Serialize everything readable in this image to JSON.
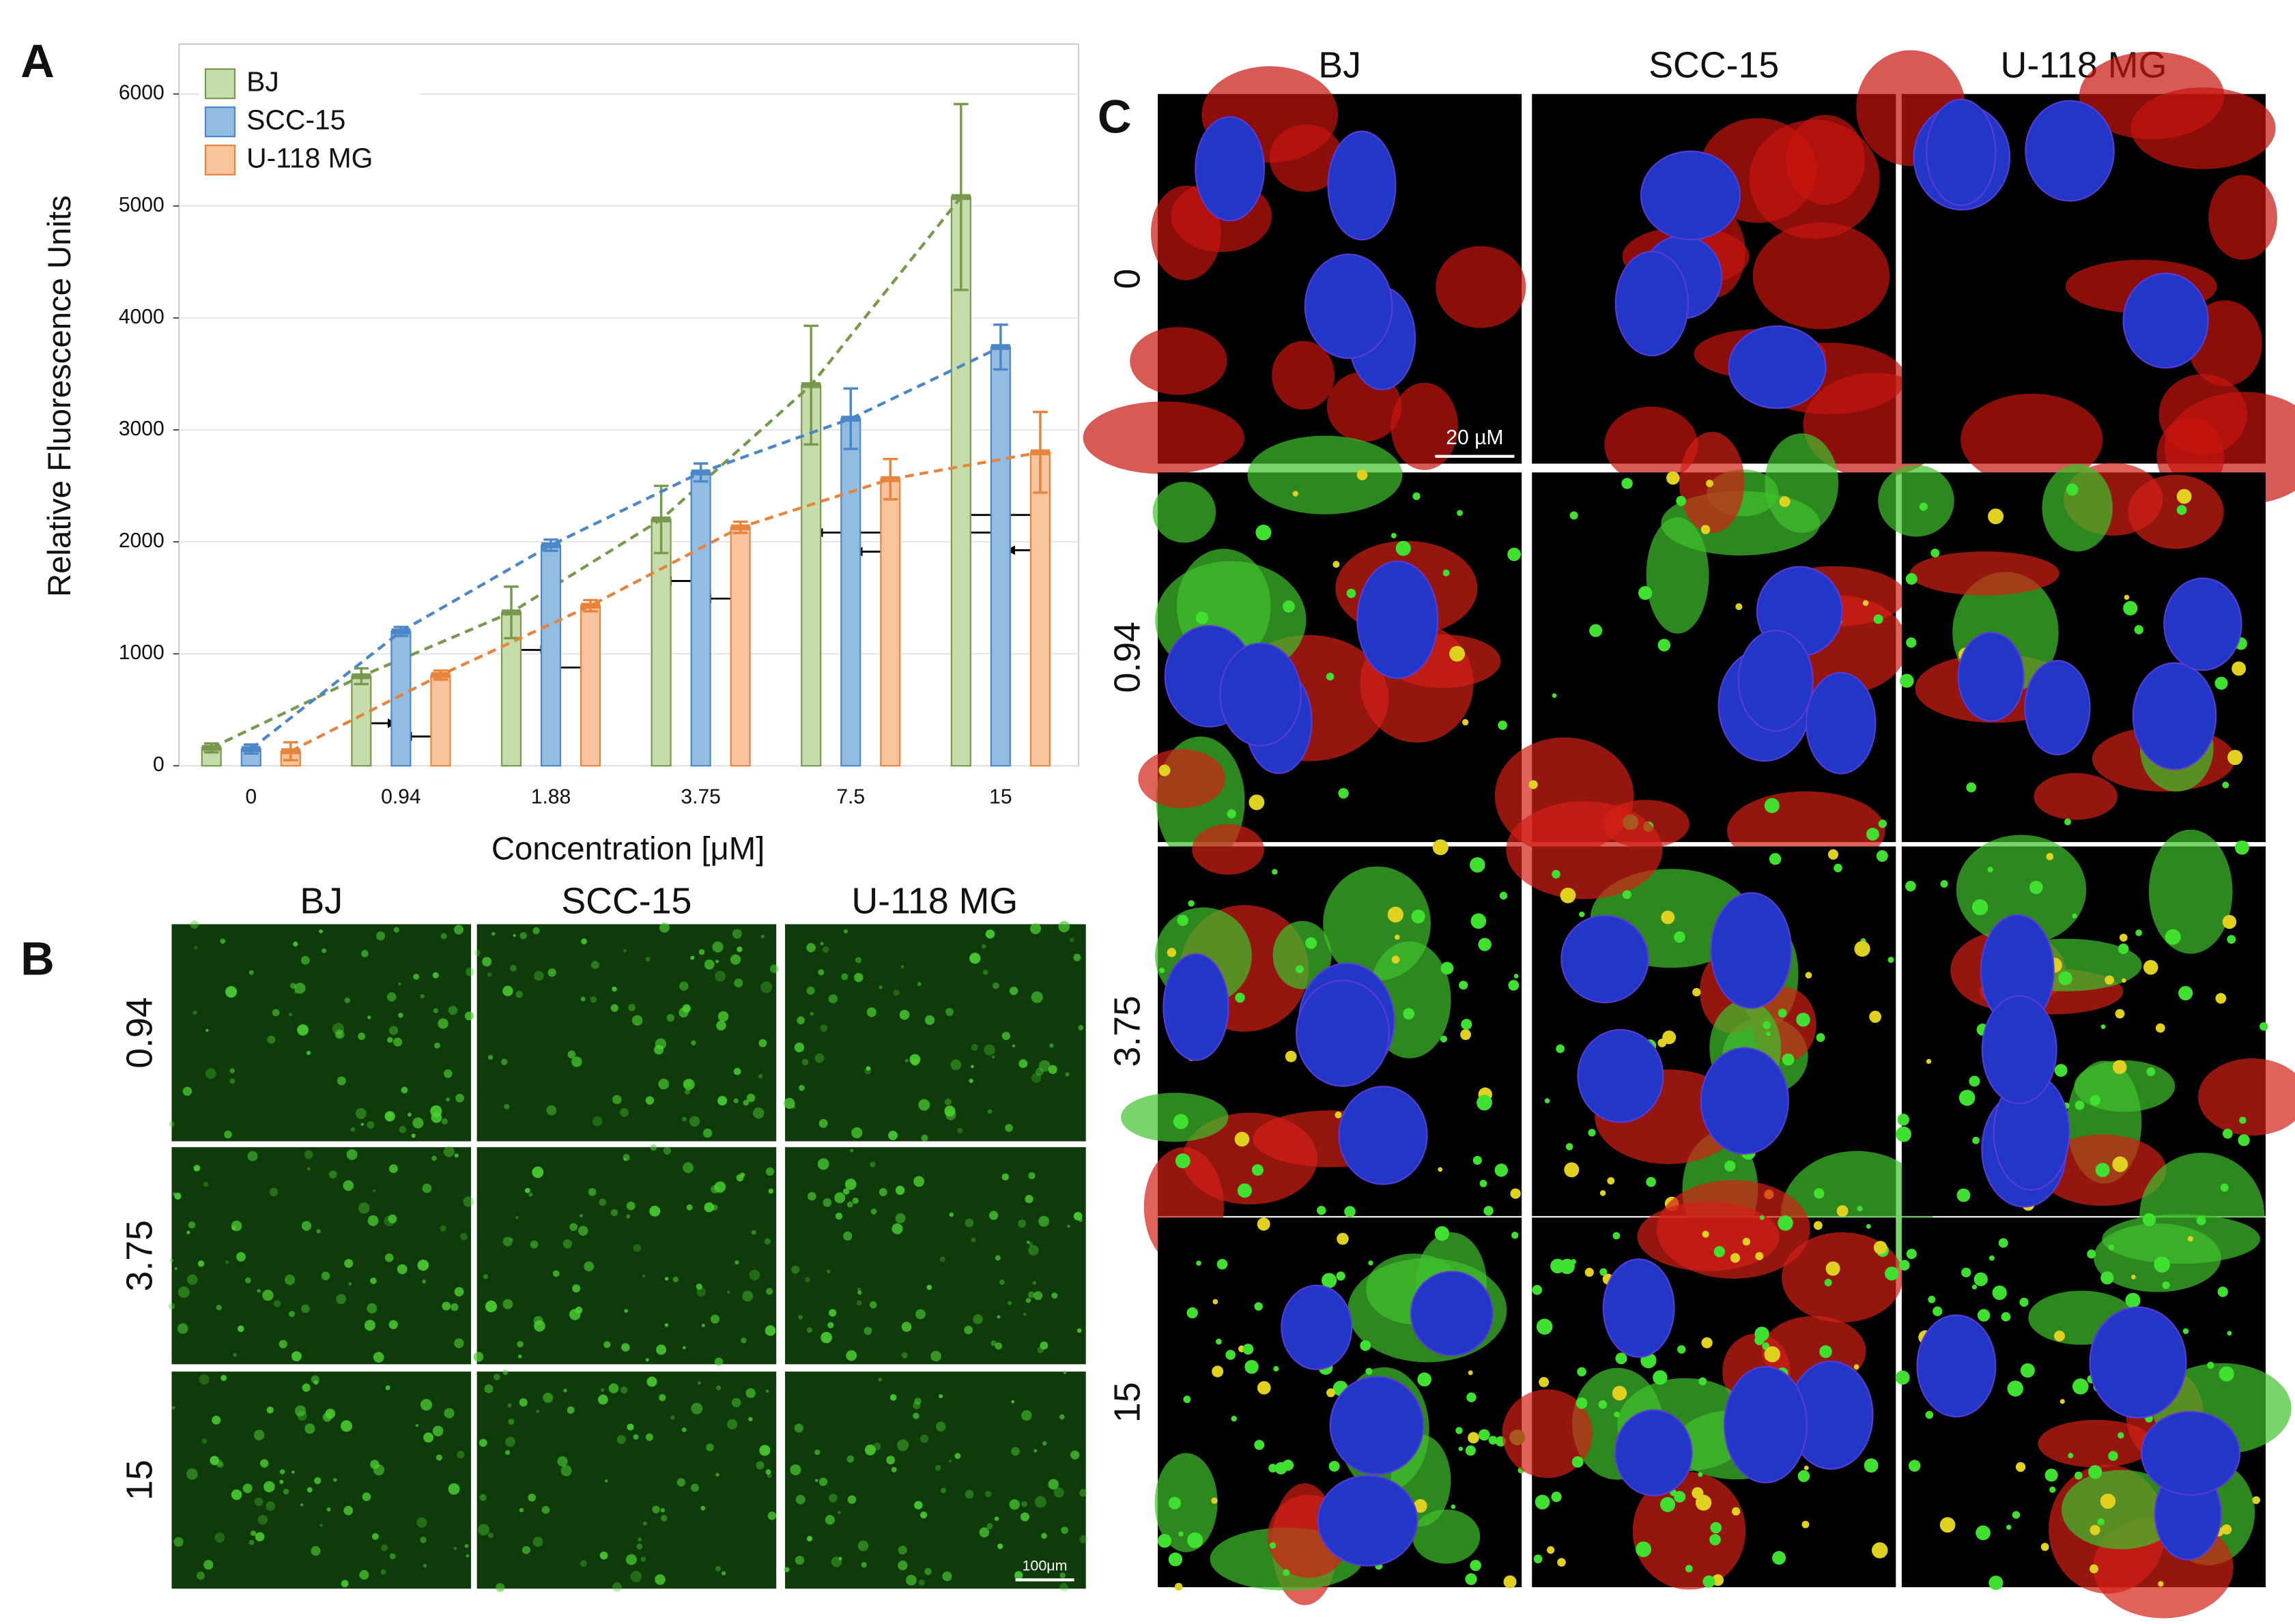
{
  "panels": [
    "A",
    "B",
    "C"
  ],
  "chart_data": {
    "type": "bar",
    "y_label": "Relative Fluorescence Units",
    "x_label": "Concentration [μM]",
    "categories": [
      "0",
      "0.94",
      "1.88",
      "3.75",
      "7.5",
      "15"
    ],
    "series": [
      {
        "name": "BJ",
        "color": "#c6dcaa",
        "edge": "#77994d",
        "values": [
          160,
          800,
          1370,
          2200,
          3400,
          5080
        ],
        "errors": [
          40,
          70,
          230,
          300,
          530,
          830
        ]
      },
      {
        "name": "SCC-15",
        "color": "#93bce3",
        "edge": "#4a86c8",
        "values": [
          150,
          1200,
          1970,
          2620,
          3100,
          3740
        ],
        "errors": [
          40,
          40,
          50,
          80,
          270,
          200
        ]
      },
      {
        "name": "U-118 MG",
        "color": "#f9c39e",
        "edge": "#e5843a",
        "values": [
          130,
          810,
          1430,
          2130,
          2560,
          2800
        ],
        "errors": [
          80,
          40,
          50,
          50,
          180,
          360
        ]
      }
    ],
    "ylim": [
      0,
      6400
    ],
    "yticks": [
      0,
      1000,
      2000,
      3000,
      4000,
      5000,
      6000
    ],
    "grid": true,
    "legend": "upper left",
    "trend_lines": "dashed"
  },
  "panel_b": {
    "columns": [
      "BJ",
      "SCC-15",
      "U-118 MG"
    ],
    "rows": [
      "0.94",
      "3.75",
      "15"
    ],
    "scale_bar": "100μm"
  },
  "panel_c": {
    "columns": [
      "BJ",
      "SCC-15",
      "U-118 MG"
    ],
    "rows": [
      "0",
      "0.94",
      "3.75",
      "15"
    ],
    "scale_bar": "20 µM"
  }
}
